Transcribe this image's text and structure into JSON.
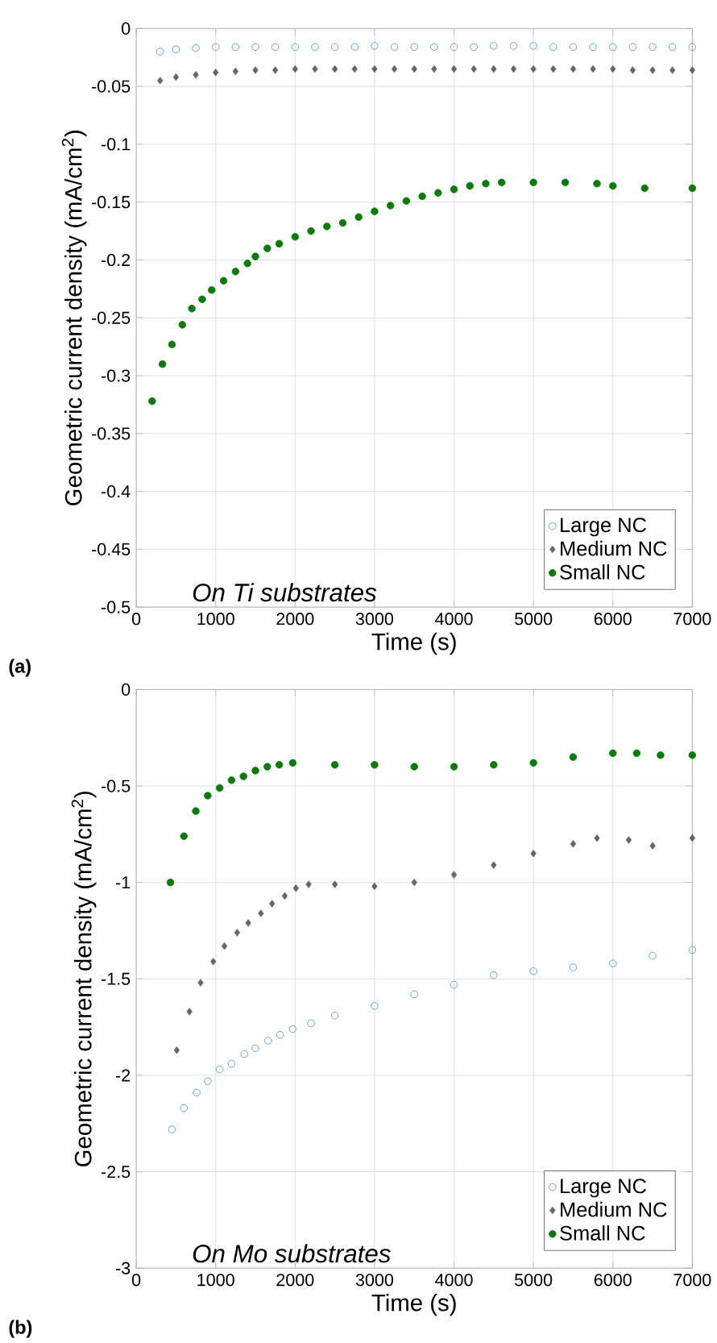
{
  "chart_data": [
    {
      "type": "scatter",
      "xlabel": "Time (s)",
      "ylabel": "Geometric current density (mA/cm$^{2}$)",
      "xlim": [
        0,
        7000
      ],
      "ylim": [
        -0.5,
        0
      ],
      "xticks": [
        0,
        1000,
        2000,
        3000,
        4000,
        5000,
        6000,
        7000
      ],
      "yticks": [
        -0.5,
        -0.45,
        -0.4,
        -0.35,
        -0.3,
        -0.25,
        -0.2,
        -0.15,
        -0.1,
        -0.05,
        0
      ],
      "grid": true,
      "legend": "bottom right",
      "annotations": [
        "On Ti substrates",
        "(a)"
      ],
      "series": [
        {
          "name": "Large NC",
          "color": "#3b8fc7",
          "marker": "open circle",
          "x": [
            300,
            500,
            750,
            1000,
            1250,
            1500,
            1750,
            2000,
            2250,
            2500,
            2750,
            3000,
            3250,
            3500,
            3750,
            4000,
            4250,
            4500,
            4750,
            5000,
            5250,
            5500,
            5750,
            6000,
            6250,
            6500,
            6750,
            7000
          ],
          "values": [
            -0.02,
            -0.018,
            -0.017,
            -0.016,
            -0.016,
            -0.016,
            -0.016,
            -0.016,
            -0.016,
            -0.016,
            -0.016,
            -0.015,
            -0.016,
            -0.016,
            -0.016,
            -0.016,
            -0.016,
            -0.015,
            -0.015,
            -0.015,
            -0.016,
            -0.016,
            -0.016,
            -0.016,
            -0.016,
            -0.016,
            -0.016,
            -0.016
          ]
        },
        {
          "name": "Medium NC",
          "color": "#666666",
          "marker": "diamond",
          "x": [
            300,
            500,
            750,
            1000,
            1250,
            1500,
            1750,
            2000,
            2250,
            2500,
            2750,
            3000,
            3250,
            3500,
            3750,
            4000,
            4250,
            4500,
            4750,
            5000,
            5250,
            5500,
            5750,
            6000,
            6250,
            6500,
            6750,
            7000
          ],
          "values": [
            -0.045,
            -0.042,
            -0.04,
            -0.038,
            -0.037,
            -0.036,
            -0.036,
            -0.035,
            -0.035,
            -0.035,
            -0.035,
            -0.035,
            -0.035,
            -0.035,
            -0.035,
            -0.035,
            -0.035,
            -0.035,
            -0.035,
            -0.035,
            -0.035,
            -0.035,
            -0.035,
            -0.035,
            -0.036,
            -0.036,
            -0.036,
            -0.036
          ]
        },
        {
          "name": "Small NC",
          "color": "#0a7a0a",
          "marker": "circle",
          "x": [
            200,
            330,
            450,
            580,
            700,
            830,
            950,
            1100,
            1250,
            1400,
            1500,
            1650,
            1800,
            2000,
            2200,
            2400,
            2600,
            2800,
            3000,
            3200,
            3400,
            3600,
            3800,
            4000,
            4200,
            4400,
            4600,
            5000,
            5400,
            5800,
            6000,
            6400,
            7000
          ],
          "values": [
            -0.322,
            -0.29,
            -0.273,
            -0.256,
            -0.242,
            -0.234,
            -0.226,
            -0.218,
            -0.21,
            -0.203,
            -0.197,
            -0.19,
            -0.186,
            -0.18,
            -0.175,
            -0.171,
            -0.168,
            -0.163,
            -0.158,
            -0.153,
            -0.149,
            -0.145,
            -0.142,
            -0.139,
            -0.136,
            -0.134,
            -0.133,
            -0.133,
            -0.133,
            -0.134,
            -0.136,
            -0.138,
            -0.138
          ]
        }
      ]
    },
    {
      "type": "scatter",
      "xlabel": "Time (s)",
      "ylabel": "Geometric current density (mA/cm$^{2}$)",
      "xlim": [
        0,
        7000
      ],
      "ylim": [
        -3,
        0
      ],
      "xticks": [
        0,
        1000,
        2000,
        3000,
        4000,
        5000,
        6000,
        7000
      ],
      "yticks": [
        -3,
        -2.5,
        -2,
        -1.5,
        -1,
        -0.5,
        0
      ],
      "grid": true,
      "legend": "bottom right",
      "annotations": [
        "On Mo substrates",
        "(b)"
      ],
      "series": [
        {
          "name": "Large NC",
          "color": "#3b8fc7",
          "marker": "open circle",
          "x": [
            450,
            600,
            760,
            900,
            1050,
            1200,
            1360,
            1500,
            1660,
            1810,
            1970,
            2200,
            2500,
            3000,
            3500,
            4000,
            4500,
            5000,
            5500,
            6000,
            6500,
            7000
          ],
          "values": [
            -2.28,
            -2.17,
            -2.09,
            -2.03,
            -1.97,
            -1.94,
            -1.89,
            -1.86,
            -1.82,
            -1.79,
            -1.76,
            -1.73,
            -1.69,
            -1.64,
            -1.58,
            -1.53,
            -1.48,
            -1.46,
            -1.44,
            -1.42,
            -1.38,
            -1.35
          ]
        },
        {
          "name": "Medium NC",
          "color": "#666666",
          "marker": "diamond",
          "x": [
            510,
            670,
            810,
            970,
            1110,
            1270,
            1410,
            1570,
            1710,
            1870,
            2010,
            2170,
            2500,
            3000,
            3500,
            4000,
            4500,
            5000,
            5500,
            5800,
            6200,
            6500,
            7000
          ],
          "values": [
            -1.87,
            -1.67,
            -1.52,
            -1.41,
            -1.33,
            -1.26,
            -1.21,
            -1.16,
            -1.11,
            -1.07,
            -1.03,
            -1.01,
            -1.01,
            -1.02,
            -1.0,
            -0.96,
            -0.91,
            -0.85,
            -0.8,
            -0.77,
            -0.78,
            -0.81,
            -0.77
          ]
        },
        {
          "name": "Small NC",
          "color": "#0a7a0a",
          "marker": "circle",
          "x": [
            430,
            600,
            750,
            900,
            1050,
            1200,
            1350,
            1500,
            1650,
            1800,
            1970,
            2500,
            3000,
            3500,
            4000,
            4500,
            5000,
            5500,
            6000,
            6300,
            6600,
            7000
          ],
          "values": [
            -1.0,
            -0.76,
            -0.63,
            -0.55,
            -0.51,
            -0.47,
            -0.45,
            -0.42,
            -0.4,
            -0.39,
            -0.38,
            -0.39,
            -0.39,
            -0.4,
            -0.4,
            -0.39,
            -0.38,
            -0.35,
            -0.33,
            -0.33,
            -0.34,
            -0.34
          ]
        }
      ]
    }
  ]
}
